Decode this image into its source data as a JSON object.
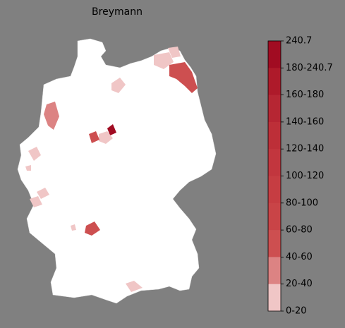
{
  "map": {
    "title": "Breymann",
    "colorbar": {
      "labels": [
        "240.7",
        "180-240.7",
        "160-180",
        "140-160",
        "120-140",
        "100-120",
        "80-100",
        "60-80",
        "40-60",
        "20-40",
        "0-20"
      ],
      "colors": [
        "#a10c22",
        "#ae1a2a",
        "#b62633",
        "#bd2f38",
        "#c2363e",
        "#c63d42",
        "#c94447",
        "#cd4f50",
        "#dc8383",
        "#f0c6c6"
      ],
      "bottom_color": "#ffffff"
    }
  }
}
